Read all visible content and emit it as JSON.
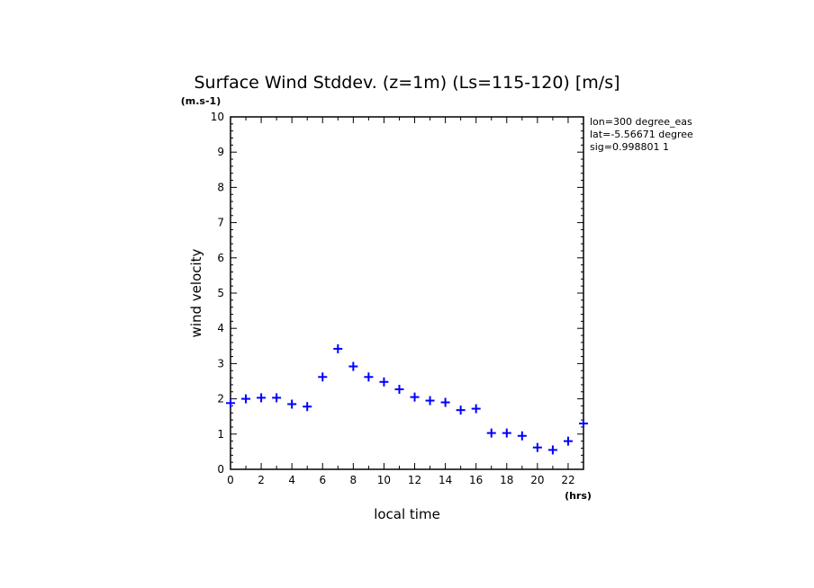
{
  "chart_data": {
    "type": "scatter",
    "title": "Surface Wind Stddev. (z=1m) (Ls=115-120) [m/s]",
    "xlabel": "local time",
    "ylabel": "wind velocity",
    "x_unit": "(hrs)",
    "y_unit": "(m.s-1)",
    "xlim": [
      0,
      23
    ],
    "ylim": [
      0,
      10
    ],
    "x_ticks": [
      "0",
      "2",
      "4",
      "6",
      "8",
      "10",
      "12",
      "14",
      "16",
      "18",
      "20",
      "22"
    ],
    "y_ticks": [
      "0",
      "1",
      "2",
      "3",
      "4",
      "5",
      "6",
      "7",
      "8",
      "9",
      "10"
    ],
    "marker": "+",
    "marker_color": "#0000ff",
    "grid": false,
    "legend": "none",
    "x": [
      0,
      1,
      2,
      3,
      4,
      5,
      6,
      7,
      8,
      9,
      10,
      11,
      12,
      13,
      14,
      15,
      16,
      17,
      18,
      19,
      20,
      21,
      22,
      23
    ],
    "y": [
      1.88,
      2.0,
      2.03,
      2.03,
      1.85,
      1.78,
      2.62,
      3.42,
      2.92,
      2.62,
      2.48,
      2.27,
      2.05,
      1.95,
      1.9,
      1.68,
      1.72,
      1.03,
      1.03,
      0.95,
      0.62,
      0.55,
      0.8,
      1.3
    ],
    "annotations": [
      "lon=300 degree_eas",
      "lat=-5.56671 degree",
      "sig=0.998801 1"
    ]
  }
}
